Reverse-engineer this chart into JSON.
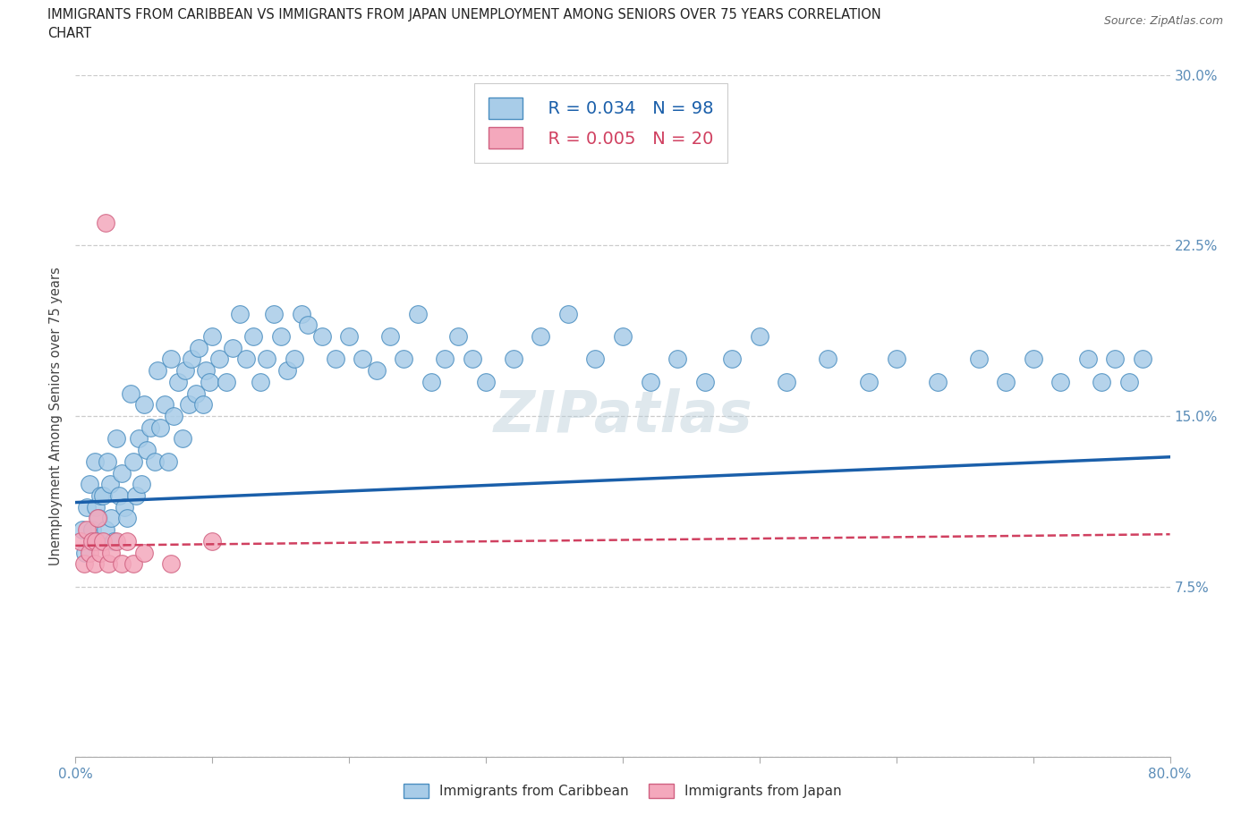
{
  "title_line1": "IMMIGRANTS FROM CARIBBEAN VS IMMIGRANTS FROM JAPAN UNEMPLOYMENT AMONG SENIORS OVER 75 YEARS CORRELATION",
  "title_line2": "CHART",
  "source": "Source: ZipAtlas.com",
  "ylabel": "Unemployment Among Seniors over 75 years",
  "xlim": [
    0.0,
    0.8
  ],
  "ylim": [
    0.0,
    0.3
  ],
  "xticks": [
    0.0,
    0.1,
    0.2,
    0.3,
    0.4,
    0.5,
    0.6,
    0.7,
    0.8
  ],
  "xticklabels": [
    "0.0%",
    "",
    "",
    "",
    "",
    "",
    "",
    "",
    "80.0%"
  ],
  "yticks": [
    0.0,
    0.075,
    0.15,
    0.225,
    0.3
  ],
  "yticklabels": [
    "",
    "7.5%",
    "15.0%",
    "22.5%",
    "30.0%"
  ],
  "caribbean_color": "#a8cce8",
  "caribbean_edge": "#4a8ec0",
  "japan_color": "#f4a8bc",
  "japan_edge": "#d06080",
  "trend_caribbean_color": "#1a5faa",
  "trend_japan_color": "#d04060",
  "legend_label_1": "  R = 0.034   N = 98",
  "legend_label_2": "  R = 0.005   N = 20",
  "label_caribbean": "Immigrants from Caribbean",
  "label_japan": "Immigrants from Japan",
  "watermark": "ZIPatlas",
  "bg_color": "#ffffff",
  "grid_color": "#cccccc",
  "tick_color": "#5b8db8",
  "caribbean_x": [
    0.005,
    0.007,
    0.008,
    0.01,
    0.012,
    0.014,
    0.015,
    0.016,
    0.017,
    0.018,
    0.02,
    0.022,
    0.023,
    0.025,
    0.026,
    0.028,
    0.03,
    0.032,
    0.034,
    0.036,
    0.038,
    0.04,
    0.042,
    0.044,
    0.046,
    0.048,
    0.05,
    0.052,
    0.055,
    0.058,
    0.06,
    0.062,
    0.065,
    0.068,
    0.07,
    0.072,
    0.075,
    0.078,
    0.08,
    0.083,
    0.085,
    0.088,
    0.09,
    0.093,
    0.095,
    0.098,
    0.1,
    0.105,
    0.11,
    0.115,
    0.12,
    0.125,
    0.13,
    0.135,
    0.14,
    0.145,
    0.15,
    0.155,
    0.16,
    0.165,
    0.17,
    0.18,
    0.19,
    0.2,
    0.21,
    0.22,
    0.23,
    0.24,
    0.25,
    0.26,
    0.27,
    0.28,
    0.29,
    0.3,
    0.32,
    0.34,
    0.36,
    0.38,
    0.4,
    0.42,
    0.44,
    0.46,
    0.48,
    0.5,
    0.52,
    0.55,
    0.58,
    0.6,
    0.63,
    0.66,
    0.68,
    0.7,
    0.72,
    0.74,
    0.75,
    0.76,
    0.77,
    0.78
  ],
  "caribbean_y": [
    0.1,
    0.09,
    0.11,
    0.12,
    0.1,
    0.13,
    0.11,
    0.095,
    0.105,
    0.115,
    0.115,
    0.1,
    0.13,
    0.12,
    0.105,
    0.095,
    0.14,
    0.115,
    0.125,
    0.11,
    0.105,
    0.16,
    0.13,
    0.115,
    0.14,
    0.12,
    0.155,
    0.135,
    0.145,
    0.13,
    0.17,
    0.145,
    0.155,
    0.13,
    0.175,
    0.15,
    0.165,
    0.14,
    0.17,
    0.155,
    0.175,
    0.16,
    0.18,
    0.155,
    0.17,
    0.165,
    0.185,
    0.175,
    0.165,
    0.18,
    0.195,
    0.175,
    0.185,
    0.165,
    0.175,
    0.195,
    0.185,
    0.17,
    0.175,
    0.195,
    0.19,
    0.185,
    0.175,
    0.185,
    0.175,
    0.17,
    0.185,
    0.175,
    0.195,
    0.165,
    0.175,
    0.185,
    0.175,
    0.165,
    0.175,
    0.185,
    0.195,
    0.175,
    0.185,
    0.165,
    0.175,
    0.165,
    0.175,
    0.185,
    0.165,
    0.175,
    0.165,
    0.175,
    0.165,
    0.175,
    0.165,
    0.175,
    0.165,
    0.175,
    0.165,
    0.175,
    0.165,
    0.175
  ],
  "japan_x": [
    0.004,
    0.006,
    0.008,
    0.01,
    0.012,
    0.014,
    0.015,
    0.016,
    0.018,
    0.02,
    0.022,
    0.024,
    0.026,
    0.03,
    0.034,
    0.038,
    0.042,
    0.05,
    0.07,
    0.1
  ],
  "japan_y": [
    0.095,
    0.085,
    0.1,
    0.09,
    0.095,
    0.085,
    0.095,
    0.105,
    0.09,
    0.095,
    0.235,
    0.085,
    0.09,
    0.095,
    0.085,
    0.095,
    0.085,
    0.09,
    0.085,
    0.095
  ]
}
